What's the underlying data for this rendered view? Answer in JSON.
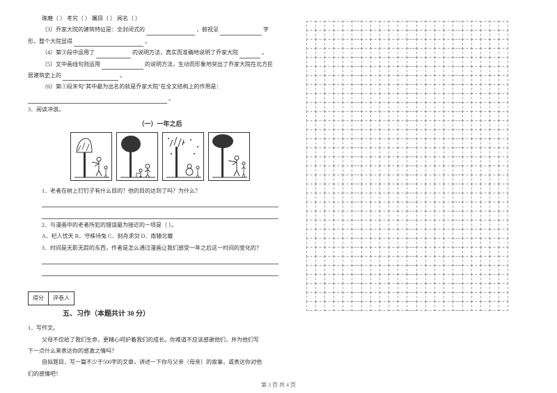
{
  "left": {
    "l1_a": "琢磨（",
    "l1_b": "）   考究（",
    "l1_c": "）   瞩目（",
    "l1_d": "）   闻名（",
    "l1_e": "）",
    "l2_a": "（3）乔家大院的建筑特征是：全封闭式的",
    "l2_b": "，俯视呈",
    "l2_c": "字",
    "l3_a": "形，整个大院显得",
    "l3_b": "。",
    "l4_a": "（4）第③段中运用了",
    "l4_b": "的说明方法，真实而准确地说明了乔家大院",
    "l4_c": "。",
    "l5_a": "（5）文中画线句则运用",
    "l5_b": "的说明方法，生动而形象地突出了乔家大院在北方民",
    "l6": "居建筑史上的",
    "l6_b": "。",
    "l7": "（6）第①段末句\"其中最为出名的就是乔家大院\"在全文结构上的作用是：",
    "l8": "。",
    "l9": "3．阅读冲浪。",
    "comic_title": "（一）一年之后",
    "q1": "1．老者在树上钉钉子有什么目的？他的目的达到了吗？为什么？",
    "q2": "2．与漫画中的老者所犯的错误最为接近的一项是（      ）。",
    "q2_opts": "A．杞人忧天    B．守株待兔    C．刻舟求剑    D．南辕北辙",
    "q3": "3．时间是无影无踪的东西，作者是怎么通过漫画让我们感受一年之后这一时间的变化的？",
    "score_a": "得分",
    "score_b": "评卷人",
    "section5": "五、习作（本题共计 30 分）",
    "essay_1": "1．写作文。",
    "essay_2": "父母不仅给了我们生命，更精心呵护着我们的成长。你难道不应该感谢他们，并为他们写",
    "essay_3": "下一点什么来表达你的感激之情吗？",
    "essay_4": "自拟题目，写一篇不少于500字的文章，讲述一下你与父亲（母亲）的故事，或表达你对他",
    "essay_5": "们的感情吧！"
  },
  "footer": "第 3 页  共 4 页",
  "grid": {
    "cols": 22,
    "rows": 32,
    "border_color": "#999999"
  }
}
